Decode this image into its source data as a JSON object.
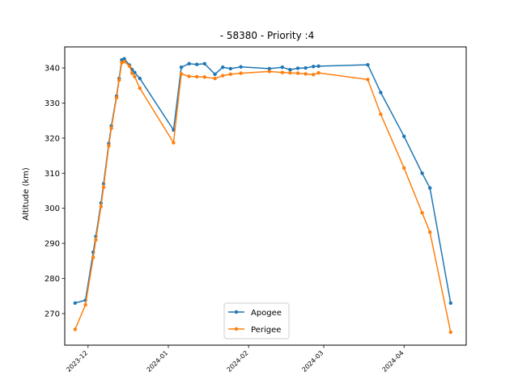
{
  "chart_data": {
    "type": "line",
    "title": "- 58380 - Priority :4",
    "xlabel": "",
    "ylabel": "Altitude (km)",
    "x_type": "date",
    "xlim": [
      "2023-11-22",
      "2024-04-25"
    ],
    "ylim": [
      261,
      346
    ],
    "x_ticks": [
      "2023-12-01",
      "2024-01-01",
      "2024-02-01",
      "2024-03-01",
      "2024-04-01"
    ],
    "x_tick_labels": [
      "2023-12",
      "2024-01",
      "2024-02",
      "2024-03",
      "2024-04"
    ],
    "y_ticks": [
      270,
      280,
      290,
      300,
      310,
      320,
      330,
      340
    ],
    "grid": false,
    "legend_position": "lower center",
    "series": [
      {
        "name": "Apogee",
        "color": "#1f77b4",
        "x": [
          "2023-11-26",
          "2023-11-30",
          "2023-12-03",
          "2023-12-04",
          "2023-12-06",
          "2023-12-07",
          "2023-12-09",
          "2023-12-10",
          "2023-12-12",
          "2023-12-13",
          "2023-12-14",
          "2023-12-15",
          "2023-12-17",
          "2023-12-18",
          "2023-12-19",
          "2023-12-21",
          "2024-01-03",
          "2024-01-06",
          "2024-01-09",
          "2024-01-12",
          "2024-01-15",
          "2024-01-19",
          "2024-01-22",
          "2024-01-25",
          "2024-01-29",
          "2024-02-09",
          "2024-02-14",
          "2024-02-17",
          "2024-02-20",
          "2024-02-23",
          "2024-02-26",
          "2024-02-28",
          "2024-03-18",
          "2024-03-23",
          "2024-04-01",
          "2024-04-08",
          "2024-04-11",
          "2024-04-19"
        ],
        "y": [
          273.0,
          273.8,
          287.5,
          292.0,
          301.5,
          307.0,
          318.5,
          323.5,
          332.0,
          337.0,
          342.3,
          342.6,
          340.8,
          339.5,
          338.7,
          337.0,
          322.3,
          340.2,
          341.2,
          341.0,
          341.2,
          338.2,
          340.2,
          339.8,
          340.3,
          339.8,
          340.2,
          339.5,
          339.9,
          340.0,
          340.4,
          340.5,
          340.9,
          333.0,
          320.5,
          310.0,
          305.8,
          273.0
        ]
      },
      {
        "name": "Perigee",
        "color": "#ff7f0e",
        "x": [
          "2023-11-26",
          "2023-11-30",
          "2023-12-03",
          "2023-12-04",
          "2023-12-06",
          "2023-12-07",
          "2023-12-09",
          "2023-12-10",
          "2023-12-12",
          "2023-12-13",
          "2023-12-14",
          "2023-12-15",
          "2023-12-17",
          "2023-12-18",
          "2023-12-19",
          "2023-12-21",
          "2024-01-03",
          "2024-01-06",
          "2024-01-09",
          "2024-01-12",
          "2024-01-15",
          "2024-01-19",
          "2024-01-22",
          "2024-01-25",
          "2024-01-29",
          "2024-02-09",
          "2024-02-14",
          "2024-02-17",
          "2024-02-20",
          "2024-02-23",
          "2024-02-26",
          "2024-02-28",
          "2024-03-18",
          "2024-03-23",
          "2024-04-01",
          "2024-04-08",
          "2024-04-11",
          "2024-04-19"
        ],
        "y": [
          265.5,
          272.5,
          286.0,
          291.0,
          300.5,
          306.0,
          317.8,
          322.8,
          331.5,
          336.5,
          341.5,
          341.8,
          340.5,
          338.5,
          337.5,
          334.2,
          318.7,
          338.3,
          337.6,
          337.5,
          337.4,
          337.0,
          337.8,
          338.2,
          338.5,
          339.0,
          338.7,
          338.6,
          338.5,
          338.3,
          338.1,
          338.6,
          336.7,
          326.8,
          311.5,
          298.7,
          293.2,
          264.7
        ]
      }
    ]
  }
}
